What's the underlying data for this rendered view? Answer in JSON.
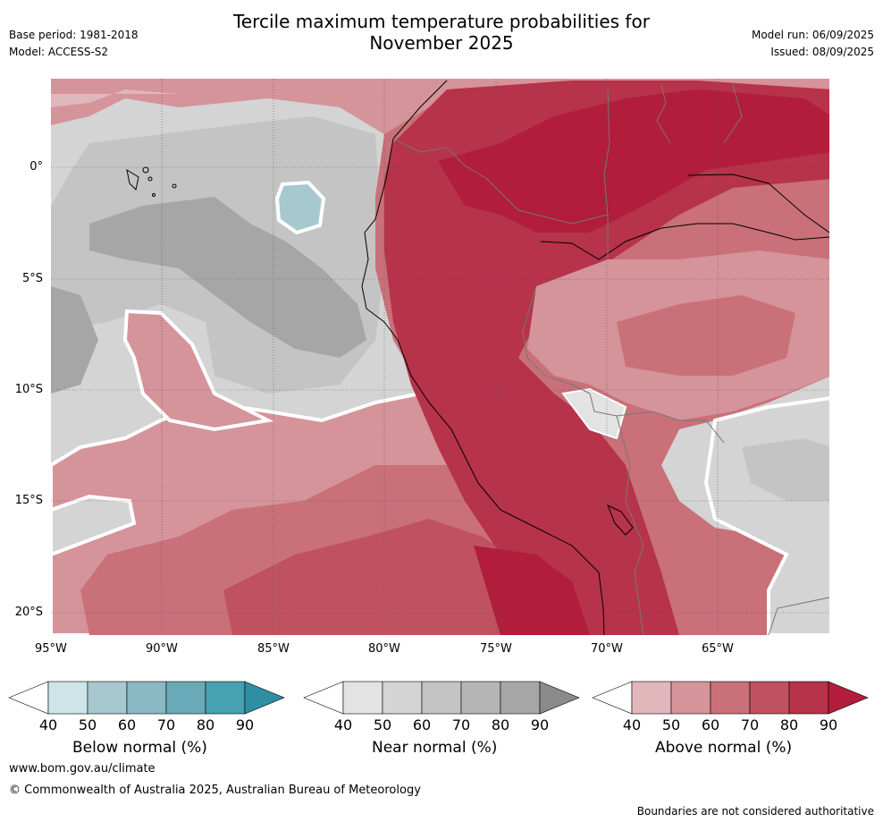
{
  "header": {
    "title_line1": "Tercile maximum temperature probabilities for",
    "title_line2": "November 2025",
    "base_period": "Base period: 1981-2018",
    "model": "Model: ACCESS-S2",
    "model_run": "Model run: 06/09/2025",
    "issued": "Issued: 08/09/2025"
  },
  "map": {
    "lat_ticks": [
      "0°",
      "5°S",
      "10°S",
      "15°S",
      "20°S"
    ],
    "lon_ticks": [
      "95°W",
      "90°W",
      "85°W",
      "80°W",
      "75°W",
      "70°W",
      "65°W"
    ],
    "colors": {
      "ocean_near": "#d4d4d4",
      "near_50": "#d4d4d4",
      "near_60": "#c4c4c4",
      "near_70": "#b5b5b5",
      "near_80": "#a6a6a6",
      "below_60": "#a7c8ce",
      "above_40": "#e0b7bb",
      "above_50": "#d5939a",
      "above_60": "#c97078",
      "above_70": "#c05260",
      "above_80": "#b6334a",
      "above_90": "#b11d3b"
    }
  },
  "colorbars": [
    {
      "label": "Below normal (%)",
      "ticks": [
        "40",
        "50",
        "60",
        "70",
        "80",
        "90"
      ],
      "colors": [
        "#ffffff",
        "#cde4e9",
        "#a7c8ce",
        "#8ab9c4",
        "#6aaab8",
        "#47a1b0",
        "#2f8ea3"
      ]
    },
    {
      "label": "Near normal (%)",
      "ticks": [
        "40",
        "50",
        "60",
        "70",
        "80",
        "90"
      ],
      "colors": [
        "#ffffff",
        "#e3e3e3",
        "#d4d4d4",
        "#c4c4c4",
        "#b5b5b5",
        "#a6a6a6",
        "#8a8a8a"
      ]
    },
    {
      "label": "Above normal (%)",
      "ticks": [
        "40",
        "50",
        "60",
        "70",
        "80",
        "90"
      ],
      "colors": [
        "#ffffff",
        "#e0b7bb",
        "#d5939a",
        "#c97078",
        "#c05260",
        "#b6334a",
        "#b11d3b"
      ]
    }
  ],
  "footer": {
    "website": "www.bom.gov.au/climate",
    "copyright": "© Commonwealth of Australia 2025, Australian Bureau of Meteorology",
    "disclaimer": "Boundaries are not considered authoritative"
  }
}
